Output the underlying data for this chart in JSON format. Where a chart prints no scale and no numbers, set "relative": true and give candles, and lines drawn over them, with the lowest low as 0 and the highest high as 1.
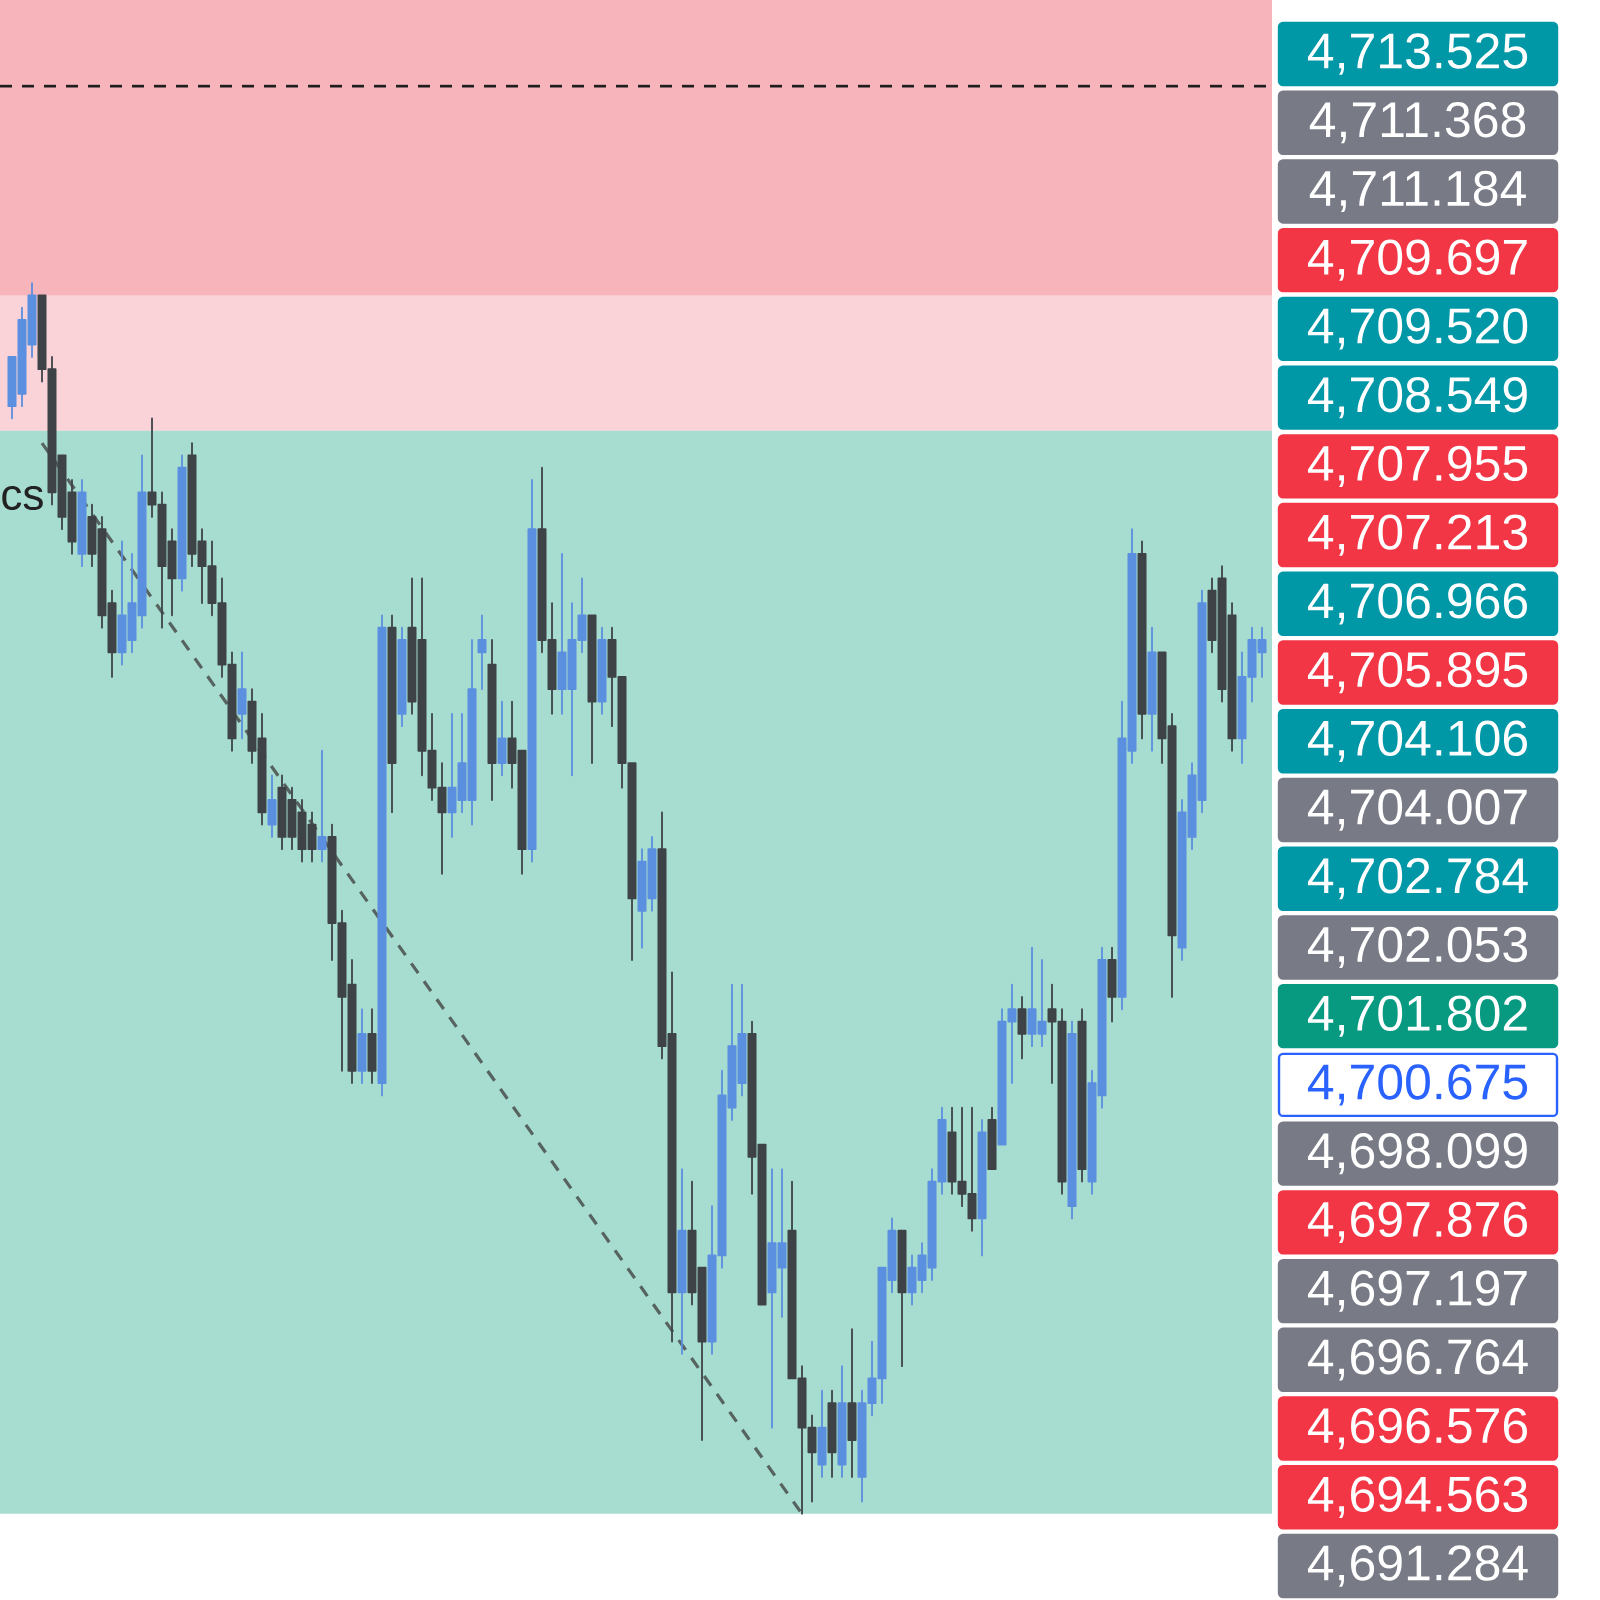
{
  "chart_data": {
    "type": "candlestick",
    "relative": true,
    "categories": [
      null,
      null,
      null,
      null,
      null,
      null,
      null,
      null,
      null,
      null,
      null,
      null,
      null,
      null,
      null,
      null,
      null,
      null,
      null,
      null,
      null,
      null,
      null,
      null,
      null,
      null,
      null,
      null,
      null,
      null,
      null,
      null,
      null,
      null,
      null,
      null,
      null,
      null,
      null,
      null,
      null,
      null,
      null,
      null,
      null,
      null,
      null,
      null,
      null,
      null,
      null,
      null,
      null,
      null,
      null,
      null,
      null,
      null,
      null,
      null,
      null,
      null,
      null,
      null,
      null,
      null,
      null,
      null,
      null,
      null,
      null,
      null,
      null,
      null,
      null,
      null,
      null,
      null,
      null,
      null,
      null,
      null,
      null,
      null,
      null,
      null,
      null,
      null,
      null,
      null,
      null,
      null,
      null,
      null,
      null,
      null,
      null,
      null,
      null,
      null,
      null,
      null,
      null,
      null,
      null,
      null,
      null,
      null,
      null,
      null,
      null,
      null,
      null,
      null,
      null,
      null,
      null,
      null,
      null,
      null,
      null,
      null,
      null,
      null,
      null,
      null
    ],
    "ohlc": [
      [
        0.9,
        0.94,
        0.89,
        0.94
      ],
      [
        0.91,
        0.98,
        0.9,
        0.97
      ],
      [
        0.95,
        1,
        0.94,
        0.99
      ],
      [
        0.99,
        0.99,
        0.92,
        0.93
      ],
      [
        0.93,
        0.94,
        0.82,
        0.83
      ],
      [
        0.86,
        0.86,
        0.8,
        0.81
      ],
      [
        0.83,
        0.84,
        0.78,
        0.79
      ],
      [
        0.78,
        0.84,
        0.77,
        0.83
      ],
      [
        0.81,
        0.82,
        0.77,
        0.78
      ],
      [
        0.8,
        0.81,
        0.72,
        0.73
      ],
      [
        0.74,
        0.75,
        0.68,
        0.7
      ],
      [
        0.7,
        0.79,
        0.69,
        0.73
      ],
      [
        0.71,
        0.78,
        0.7,
        0.74
      ],
      [
        0.73,
        0.86,
        0.72,
        0.83
      ],
      [
        0.83,
        0.89,
        0.81,
        0.82
      ],
      [
        0.82,
        0.83,
        0.72,
        0.77
      ],
      [
        0.79,
        0.8,
        0.73,
        0.76
      ],
      [
        0.76,
        0.86,
        0.75,
        0.85
      ],
      [
        0.86,
        0.87,
        0.77,
        0.78
      ],
      [
        0.79,
        0.8,
        0.74,
        0.77
      ],
      [
        0.77,
        0.79,
        0.73,
        0.74
      ],
      [
        0.74,
        0.76,
        0.68,
        0.69
      ],
      [
        0.69,
        0.7,
        0.62,
        0.63
      ],
      [
        0.65,
        0.7,
        0.63,
        0.67
      ],
      [
        0.66,
        0.67,
        0.61,
        0.62
      ],
      [
        0.63,
        0.65,
        0.56,
        0.57
      ],
      [
        0.56,
        0.6,
        0.55,
        0.58
      ],
      [
        0.59,
        0.6,
        0.54,
        0.55
      ],
      [
        0.58,
        0.59,
        0.54,
        0.55
      ],
      [
        0.57,
        0.58,
        0.53,
        0.54
      ],
      [
        0.56,
        0.57,
        0.53,
        0.54
      ],
      [
        0.54,
        0.62,
        0.53,
        0.55
      ],
      [
        0.55,
        0.56,
        0.45,
        0.48
      ],
      [
        0.48,
        0.49,
        0.36,
        0.42
      ],
      [
        0.43,
        0.45,
        0.35,
        0.36
      ],
      [
        0.36,
        0.41,
        0.35,
        0.39
      ],
      [
        0.39,
        0.41,
        0.35,
        0.36
      ],
      [
        0.35,
        0.73,
        0.34,
        0.72
      ],
      [
        0.72,
        0.73,
        0.57,
        0.61
      ],
      [
        0.65,
        0.72,
        0.64,
        0.71
      ],
      [
        0.72,
        0.76,
        0.65,
        0.66
      ],
      [
        0.71,
        0.76,
        0.6,
        0.62
      ],
      [
        0.62,
        0.65,
        0.58,
        0.59
      ],
      [
        0.59,
        0.61,
        0.52,
        0.57
      ],
      [
        0.57,
        0.65,
        0.55,
        0.59
      ],
      [
        0.58,
        0.65,
        0.57,
        0.61
      ],
      [
        0.58,
        0.71,
        0.56,
        0.67
      ],
      [
        0.7,
        0.73,
        0.67,
        0.71
      ],
      [
        0.69,
        0.71,
        0.58,
        0.61
      ],
      [
        0.61,
        0.66,
        0.6,
        0.63
      ],
      [
        0.63,
        0.66,
        0.59,
        0.61
      ],
      [
        0.62,
        0.62,
        0.52,
        0.54
      ],
      [
        0.54,
        0.84,
        0.53,
        0.8
      ],
      [
        0.8,
        0.85,
        0.7,
        0.71
      ],
      [
        0.71,
        0.74,
        0.65,
        0.67
      ],
      [
        0.67,
        0.78,
        0.65,
        0.7
      ],
      [
        0.67,
        0.74,
        0.6,
        0.71
      ],
      [
        0.71,
        0.76,
        0.7,
        0.73
      ],
      [
        0.73,
        0.73,
        0.61,
        0.66
      ],
      [
        0.66,
        0.72,
        0.65,
        0.71
      ],
      [
        0.71,
        0.72,
        0.64,
        0.68
      ],
      [
        0.68,
        0.68,
        0.59,
        0.61
      ],
      [
        0.61,
        0.61,
        0.45,
        0.5
      ],
      [
        0.49,
        0.54,
        0.46,
        0.53
      ],
      [
        0.5,
        0.55,
        0.49,
        0.54
      ],
      [
        0.54,
        0.57,
        0.37,
        0.38
      ],
      [
        0.39,
        0.44,
        0.14,
        0.18
      ],
      [
        0.18,
        0.28,
        0.13,
        0.23
      ],
      [
        0.23,
        0.27,
        0.17,
        0.18
      ],
      [
        0.2,
        0.2,
        0.06,
        0.14
      ],
      [
        0.14,
        0.25,
        0.13,
        0.21
      ],
      [
        0.21,
        0.36,
        0.2,
        0.34
      ],
      [
        0.33,
        0.43,
        0.32,
        0.38
      ],
      [
        0.35,
        0.43,
        0.34,
        0.39
      ],
      [
        0.39,
        0.4,
        0.26,
        0.29
      ],
      [
        0.3,
        0.3,
        0.17,
        0.17
      ],
      [
        0.18,
        0.28,
        0.07,
        0.22
      ],
      [
        0.2,
        0.28,
        0.16,
        0.22
      ],
      [
        0.23,
        0.27,
        0.11,
        0.11
      ],
      [
        0.11,
        0.12,
        0,
        0.07
      ],
      [
        0.07,
        0.08,
        0.01,
        0.05
      ],
      [
        0.04,
        0.1,
        0.03,
        0.07
      ],
      [
        0.09,
        0.1,
        0.03,
        0.05
      ],
      [
        0.04,
        0.12,
        0.03,
        0.09
      ],
      [
        0.09,
        0.15,
        0.03,
        0.06
      ],
      [
        0.03,
        0.1,
        0.01,
        0.09
      ],
      [
        0.09,
        0.14,
        0.08,
        0.11
      ],
      [
        0.11,
        0.2,
        0.09,
        0.2
      ],
      [
        0.19,
        0.24,
        0.18,
        0.23
      ],
      [
        0.23,
        0.23,
        0.12,
        0.18
      ],
      [
        0.18,
        0.21,
        0.17,
        0.2
      ],
      [
        0.19,
        0.22,
        0.18,
        0.21
      ],
      [
        0.2,
        0.28,
        0.19,
        0.27
      ],
      [
        0.27,
        0.33,
        0.26,
        0.32
      ],
      [
        0.31,
        0.33,
        0.26,
        0.27
      ],
      [
        0.27,
        0.33,
        0.25,
        0.26
      ],
      [
        0.26,
        0.33,
        0.23,
        0.24
      ],
      [
        0.24,
        0.32,
        0.21,
        0.31
      ],
      [
        0.32,
        0.33,
        0.28,
        0.28
      ],
      [
        0.3,
        0.41,
        0.3,
        0.4
      ],
      [
        0.4,
        0.43,
        0.35,
        0.41
      ],
      [
        0.41,
        0.42,
        0.37,
        0.39
      ],
      [
        0.39,
        0.46,
        0.38,
        0.41
      ],
      [
        0.39,
        0.45,
        0.38,
        0.4
      ],
      [
        0.41,
        0.43,
        0.35,
        0.4
      ],
      [
        0.4,
        0.41,
        0.26,
        0.27
      ],
      [
        0.25,
        0.4,
        0.24,
        0.39
      ],
      [
        0.4,
        0.41,
        0.27,
        0.28
      ],
      [
        0.27,
        0.36,
        0.26,
        0.35
      ],
      [
        0.34,
        0.46,
        0.33,
        0.45
      ],
      [
        0.45,
        0.46,
        0.4,
        0.42
      ],
      [
        0.42,
        0.66,
        0.41,
        0.63
      ],
      [
        0.62,
        0.8,
        0.61,
        0.78
      ],
      [
        0.78,
        0.79,
        0.63,
        0.65
      ],
      [
        0.65,
        0.72,
        0.62,
        0.7
      ],
      [
        0.7,
        0.7,
        0.61,
        0.63
      ],
      [
        0.64,
        0.65,
        0.42,
        0.47
      ],
      [
        0.46,
        0.58,
        0.45,
        0.57
      ],
      [
        0.55,
        0.61,
        0.54,
        0.6
      ],
      [
        0.58,
        0.75,
        0.57,
        0.74
      ],
      [
        0.75,
        0.76,
        0.7,
        0.71
      ],
      [
        0.76,
        0.77,
        0.66,
        0.67
      ],
      [
        0.73,
        0.74,
        0.62,
        0.63
      ],
      [
        0.63,
        0.7,
        0.61,
        0.68
      ],
      [
        0.68,
        0.72,
        0.66,
        0.71
      ],
      [
        0.7,
        0.72,
        0.68,
        0.71
      ]
    ],
    "colors": [
      "#5b8fdf",
      "#5b8fdf",
      "#5b8fdf",
      "#3e4347",
      "#3e4347",
      "#3e4347",
      "#3e4347",
      "#5b8fdf",
      "#3e4347",
      "#3e4347",
      "#3e4347",
      "#5b8fdf",
      "#5b8fdf",
      "#5b8fdf",
      "#3e4347",
      "#3e4347",
      "#3e4347",
      "#5b8fdf",
      "#3e4347",
      "#3e4347",
      "#3e4347",
      "#3e4347",
      "#3e4347",
      "#5b8fdf",
      "#3e4347",
      "#3e4347",
      "#5b8fdf",
      "#3e4347",
      "#3e4347",
      "#3e4347",
      "#3e4347",
      "#5b8fdf",
      "#3e4347",
      "#3e4347",
      "#3e4347",
      "#5b8fdf",
      "#3e4347",
      "#5b8fdf",
      "#3e4347",
      "#5b8fdf",
      "#3e4347",
      "#3e4347",
      "#3e4347",
      "#3e4347",
      "#5b8fdf",
      "#5b8fdf",
      "#5b8fdf",
      "#5b8fdf",
      "#3e4347",
      "#5b8fdf",
      "#3e4347",
      "#3e4347",
      "#5b8fdf",
      "#3e4347",
      "#3e4347",
      "#5b8fdf",
      "#5b8fdf",
      "#5b8fdf",
      "#3e4347",
      "#5b8fdf",
      "#3e4347",
      "#3e4347",
      "#3e4347",
      "#5b8fdf",
      "#5b8fdf",
      "#3e4347",
      "#3e4347",
      "#5b8fdf",
      "#3e4347",
      "#3e4347",
      "#5b8fdf",
      "#5b8fdf",
      "#5b8fdf",
      "#5b8fdf",
      "#3e4347",
      "#3e4347",
      "#5b8fdf",
      "#5b8fdf",
      "#3e4347",
      "#3e4347",
      "#3e4347",
      "#5b8fdf",
      "#3e4347",
      "#5b8fdf",
      "#3e4347",
      "#5b8fdf",
      "#5b8fdf",
      "#5b8fdf",
      "#5b8fdf",
      "#3e4347",
      "#5b8fdf",
      "#5b8fdf",
      "#5b8fdf",
      "#5b8fdf",
      "#3e4347",
      "#3e4347",
      "#3e4347",
      "#5b8fdf",
      "#3e4347",
      "#5b8fdf",
      "#5b8fdf",
      "#3e4347",
      "#5b8fdf",
      "#5b8fdf",
      "#3e4347",
      "#3e4347",
      "#5b8fdf",
      "#3e4347",
      "#5b8fdf",
      "#5b8fdf",
      "#3e4347",
      "#5b8fdf",
      "#5b8fdf",
      "#3e4347",
      "#5b8fdf",
      "#3e4347",
      "#3e4347",
      "#5b8fdf",
      "#5b8fdf",
      "#5b8fdf",
      "#3e4347",
      "#3e4347",
      "#3e4347",
      "#5b8fdf",
      "#5b8fdf",
      "#5b8fdf"
    ],
    "series": [
      {
        "type": "line",
        "color": "#56635f",
        "line_style": "dashed",
        "values": [
          null,
          null,
          null,
          0.87,
          null,
          null,
          null,
          null,
          null,
          null,
          null,
          null,
          null,
          null,
          null,
          null,
          null,
          null,
          null,
          null,
          null,
          null,
          null,
          null,
          null,
          null,
          null,
          null,
          null,
          null,
          null,
          null,
          null,
          null,
          null,
          null,
          null,
          null,
          null,
          null,
          null,
          null,
          null,
          null,
          null,
          null,
          null,
          null,
          null,
          null,
          null,
          null,
          null,
          null,
          null,
          null,
          null,
          null,
          null,
          null,
          null,
          null,
          null,
          null,
          null,
          null,
          null,
          null,
          null,
          null,
          null,
          null,
          null,
          null,
          null,
          null,
          null,
          null,
          null,
          0,
          null,
          null,
          null,
          null,
          null,
          null,
          null,
          null,
          null,
          null,
          null,
          null,
          null,
          null,
          null,
          null,
          null,
          null,
          null,
          null,
          null,
          null,
          null,
          null,
          null,
          null,
          null,
          null,
          null,
          null,
          null,
          null,
          null,
          null,
          null,
          null,
          null,
          null,
          null,
          null,
          null,
          null,
          null,
          null,
          null,
          null
        ]
      }
    ],
    "bands": [
      {
        "axis": "y",
        "from": 0.88,
        "to": 1.04,
        "color": "#f9d3d7"
      },
      {
        "axis": "y",
        "from": 0,
        "to": 0.88,
        "color": "#a7dcd0"
      },
      {
        "axis": "y",
        "from": 0.99,
        "to": 1.23,
        "color": "#f7b5bb"
      }
    ],
    "ref_lines": [
      {
        "axis": "y",
        "value": 1.16,
        "line_style": "dashed",
        "color": "#1f1f1f"
      }
    ],
    "annotations": [
      "cs",
      "4,713.525",
      "4,711.368",
      "4,711.184",
      "4,709.697",
      "4,709.520",
      "4,708.549",
      "4,707.955",
      "4,707.213",
      "4,706.966",
      "4,705.895",
      "4,704.106",
      "4,704.007",
      "4,702.784",
      "4,702.053",
      "4,701.802",
      "4,700.675",
      "4,698.099",
      "4,697.876",
      "4,697.197",
      "4,696.764",
      "4,696.576",
      "4,694.563",
      "4,691.284"
    ]
  }
}
